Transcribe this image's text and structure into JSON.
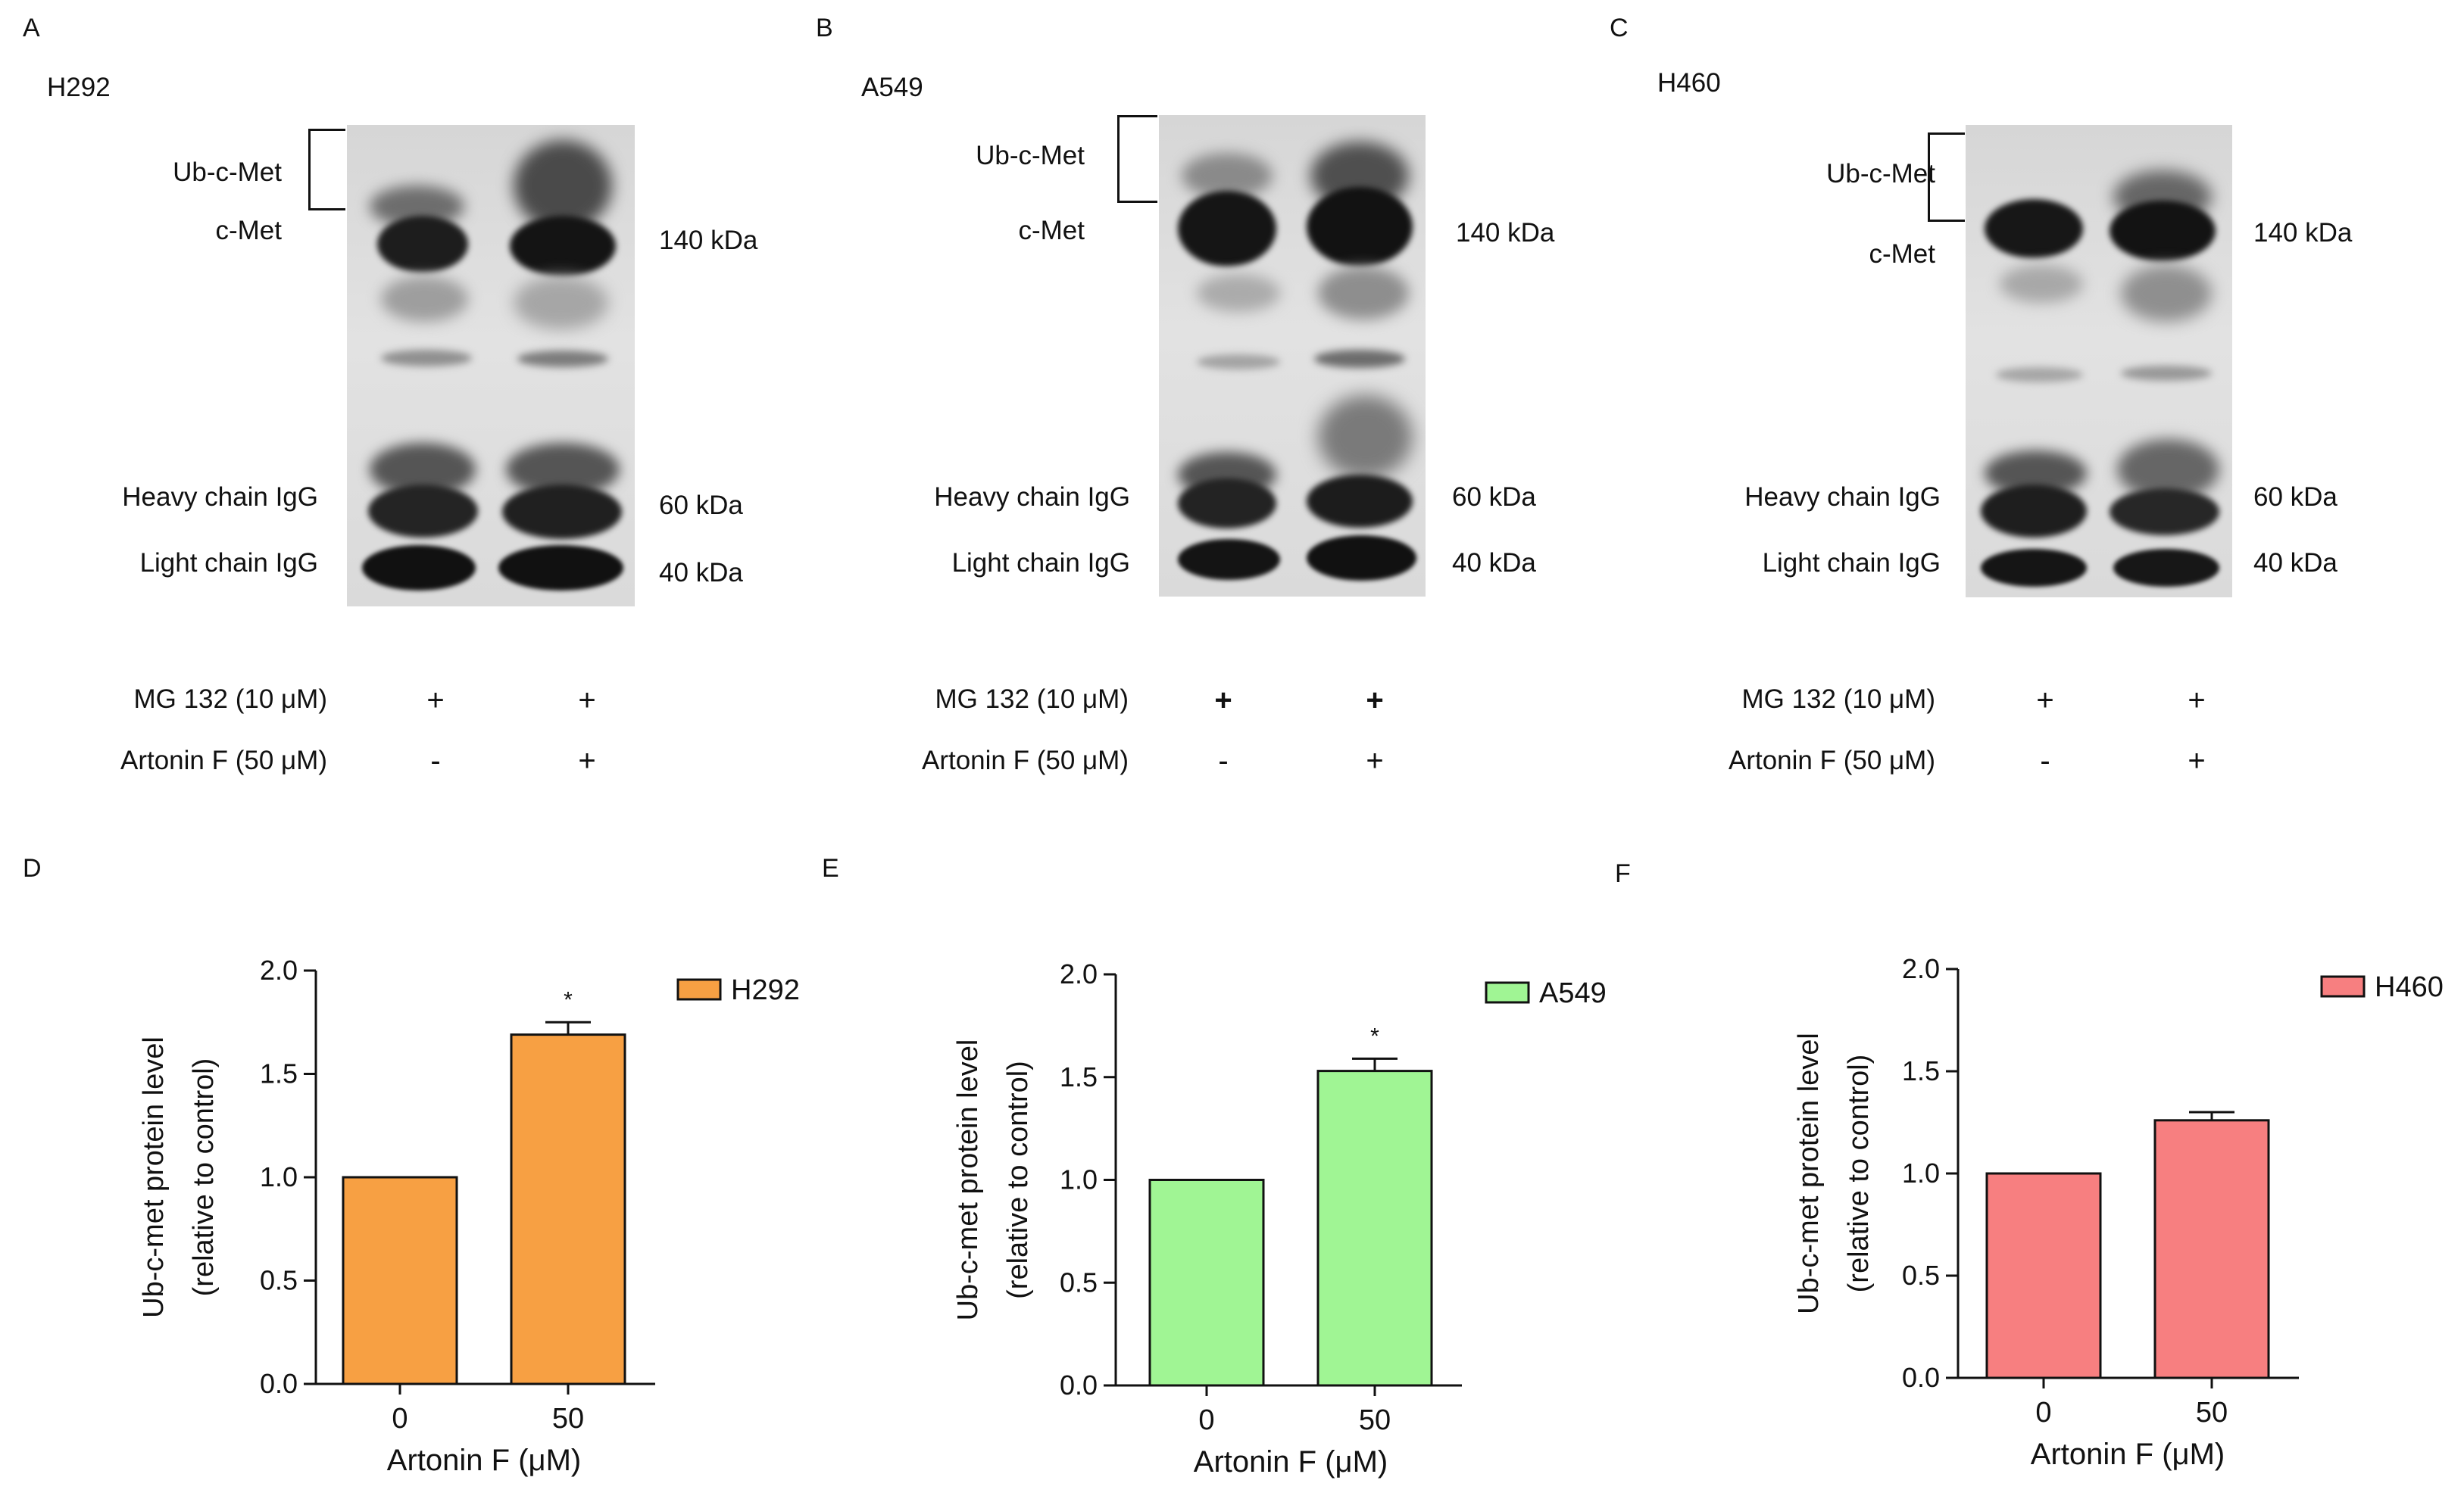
{
  "blots": [
    {
      "letter": "A",
      "cell_line": "H292",
      "labels": {
        "ub": "Ub-c-Met",
        "cmet": "c-Met",
        "heavy": "Heavy chain IgG",
        "light": "Light chain IgG"
      },
      "markers": {
        "m140": "140 kDa",
        "m60": "60 kDa",
        "m40": "40 kDa"
      },
      "treatments": [
        {
          "label": "MG 132 (10 μM)",
          "lane1": "+",
          "lane2": "+"
        },
        {
          "label": "Artonin F (50 μM)",
          "lane1": "-",
          "lane2": "+"
        }
      ]
    },
    {
      "letter": "B",
      "cell_line": "A549",
      "labels": {
        "ub": "Ub-c-Met",
        "cmet": "c-Met",
        "heavy": "Heavy chain IgG",
        "light": "Light chain IgG"
      },
      "markers": {
        "m140": "140 kDa",
        "m60": "60 kDa",
        "m40": "40 kDa"
      },
      "treatments": [
        {
          "label": "MG 132 (10 μM)",
          "lane1": "+",
          "lane2": "+"
        },
        {
          "label": "Artonin F (50 μM)",
          "lane1": "-",
          "lane2": "+"
        }
      ]
    },
    {
      "letter": "C",
      "cell_line": "H460",
      "labels": {
        "ub": "Ub-c-Met",
        "cmet": "c-Met",
        "heavy": "Heavy chain IgG",
        "light": "Light chain IgG"
      },
      "markers": {
        "m140": "140 kDa",
        "m60": "60 kDa",
        "m40": "40 kDa"
      },
      "treatments": [
        {
          "label": "MG 132 (10 μM)",
          "lane1": "+",
          "lane2": "+"
        },
        {
          "label": "Artonin F (50 μM)",
          "lane1": "-",
          "lane2": "+"
        }
      ]
    }
  ],
  "colors": {
    "H292": "#f7a043",
    "A549": "#a0f594",
    "H460": "#f77f80"
  },
  "chart_data": [
    {
      "letter": "D",
      "type": "bar",
      "categories": [
        "0",
        "50"
      ],
      "series": [
        {
          "name": "H292",
          "values": [
            1.0,
            1.69
          ],
          "errors": [
            0,
            0.06
          ]
        }
      ],
      "significance": [
        "",
        "*"
      ],
      "xlabel": "Artonin F (μM)",
      "ylabel": [
        "Ub-c-met protein level",
        "(relative to control)"
      ],
      "ylim": [
        0,
        2.0
      ],
      "yticks": [
        "0.0",
        "0.5",
        "1.0",
        "1.5",
        "2.0"
      ],
      "color": "#f7a043",
      "legend_position": "top-right",
      "grid": false
    },
    {
      "letter": "E",
      "type": "bar",
      "categories": [
        "0",
        "50"
      ],
      "series": [
        {
          "name": "A549",
          "values": [
            1.0,
            1.53
          ],
          "errors": [
            0,
            0.06
          ]
        }
      ],
      "significance": [
        "",
        "*"
      ],
      "xlabel": "Artonin F (μM)",
      "ylabel": [
        "Ub-c-met protein level",
        "(relative to control)"
      ],
      "ylim": [
        0,
        2.0
      ],
      "yticks": [
        "0.0",
        "0.5",
        "1.0",
        "1.5",
        "2.0"
      ],
      "color": "#a0f594",
      "legend_position": "top-right",
      "grid": false
    },
    {
      "letter": "F",
      "type": "bar",
      "categories": [
        "0",
        "50"
      ],
      "series": [
        {
          "name": "H460",
          "values": [
            1.0,
            1.26
          ],
          "errors": [
            0,
            0.04
          ]
        }
      ],
      "significance": [
        "",
        ""
      ],
      "xlabel": "Artonin F (μM)",
      "ylabel": [
        "Ub-c-met protein level",
        "(relative to control)"
      ],
      "ylim": [
        0,
        2.0
      ],
      "yticks": [
        "0.0",
        "0.5",
        "1.0",
        "1.5",
        "2.0"
      ],
      "color": "#f77f80",
      "legend_position": "top-right",
      "grid": false
    }
  ]
}
